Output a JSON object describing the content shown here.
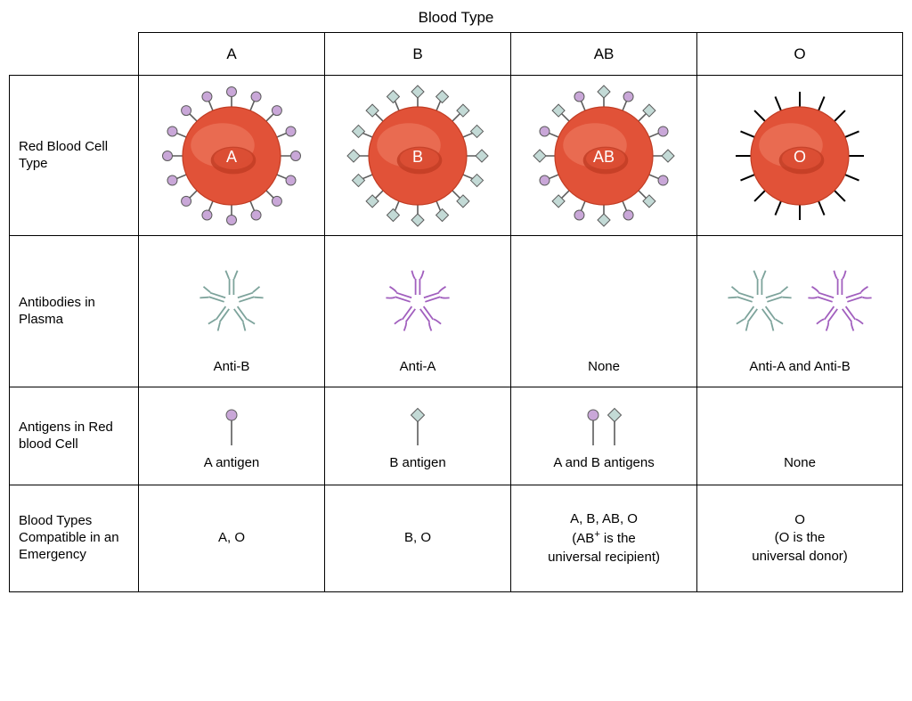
{
  "title": "Blood Type",
  "row_labels": {
    "rbc": "Red Blood Cell Type",
    "antibodies": "Antibodies in Plasma",
    "antigens": "Antigens in Red blood Cell",
    "compat": "Blood Types Compatible in an Emergency"
  },
  "columns": [
    "A",
    "B",
    "AB",
    "O"
  ],
  "colors": {
    "cell_fill": "#e15238",
    "cell_highlight": "#f08066",
    "cell_shadow": "#c23d24",
    "cell_border": "#c23d24",
    "a_antigen_fill": "#c9a7d8",
    "a_antigen_stroke": "#5c5c5c",
    "b_antigen_fill": "#c3dad6",
    "b_antigen_stroke": "#5c5c5c",
    "anti_a_stroke": "#a15fbe",
    "anti_b_stroke": "#7da39b",
    "plain_stick": "#000000",
    "label_on_cell": "#ffffff",
    "border": "#000000",
    "text": "#000000"
  },
  "rbc_letters": {
    "A": "A",
    "B": "B",
    "AB": "AB",
    "O": "O"
  },
  "antibodies": {
    "A": {
      "label": "Anti-B",
      "kind": "antiB"
    },
    "B": {
      "label": "Anti-A",
      "kind": "antiA"
    },
    "AB": {
      "label": "None",
      "kind": "none"
    },
    "O": {
      "label": "Anti-A and Anti-B",
      "kind": "both"
    }
  },
  "antigens": {
    "A": {
      "label": "A antigen"
    },
    "B": {
      "label": "B antigen"
    },
    "AB": {
      "label": "A and B antigens"
    },
    "O": {
      "label": "None"
    }
  },
  "compat": {
    "A": "A, O",
    "B": "B, O",
    "AB_line1": "A, B, AB, O",
    "AB_line2a": "(AB",
    "AB_line2b": " is the",
    "AB_line3": "universal recipient)",
    "O_line1": "O",
    "O_line2": "(O is the",
    "O_line3": "universal donor)"
  },
  "style": {
    "cell_radius": 55,
    "stick_len": 20,
    "n_sticks": 16,
    "antibody_arm_len": 26,
    "line_width": 1.6
  }
}
